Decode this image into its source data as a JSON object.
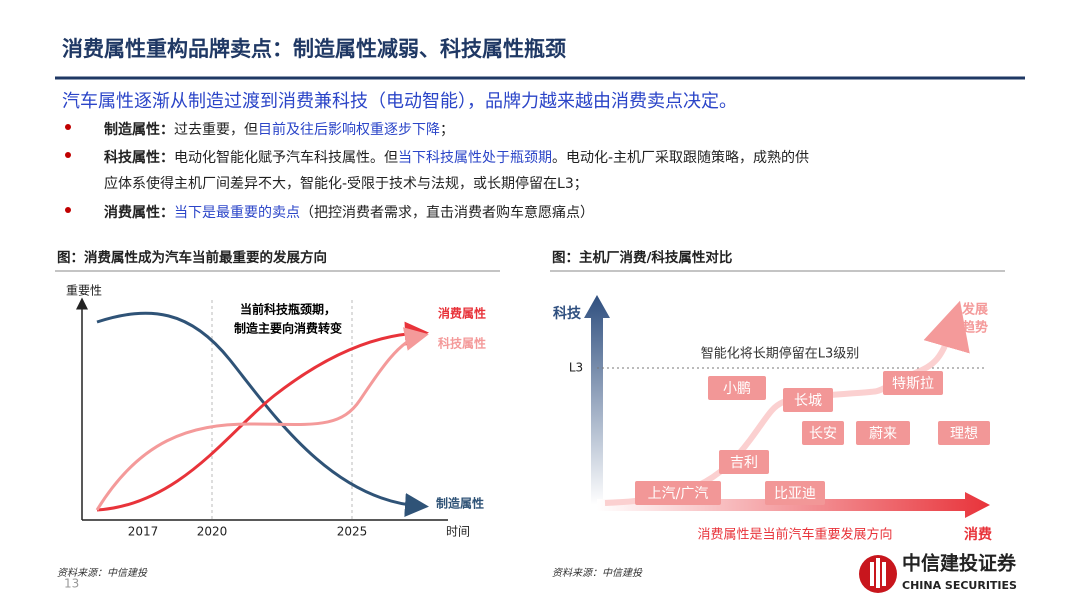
{
  "header": {
    "title": "消费属性重构品牌卖点：制造属性减弱、科技属性瓶颈"
  },
  "summary": "汽车属性逐渐从制造过渡到消费兼科技（电动智能），品牌力越来越由消费卖点决定。",
  "bullets": [
    {
      "label": "制造属性：",
      "parts": [
        {
          "text": "过去重要，但"
        },
        {
          "text": "目前及往后影响权重逐步下降",
          "color": "#2b45c8"
        },
        {
          "text": "；"
        }
      ]
    },
    {
      "label": "科技属性：",
      "parts": [
        {
          "text": "电动化智能化赋予汽车科技属性。但"
        },
        {
          "text": "当下科技属性处于瓶颈期",
          "color": "#2b45c8"
        },
        {
          "text": "。电动化-主机厂采取跟随策略，成熟的供"
        },
        {
          "text": "应体系使得主机厂间差异不大，智能化-受限于技术与法规，或长期停留在L3；"
        }
      ]
    },
    {
      "label": "消费属性：",
      "parts": [
        {
          "text": "当下是最重要的卖点",
          "color": "#2b45c8"
        },
        {
          "text": "（把控消费者需求，直击消费者购车意愿痛点）"
        }
      ]
    }
  ],
  "left_figure": {
    "title": "图：消费属性成为汽车当前最重要的发展方向",
    "y_label": "重要性",
    "x_label": "时间",
    "x_ticks": [
      "2017",
      "2020",
      "2025"
    ],
    "annotation": [
      "当前科技瓶颈期，",
      "制造主要向消费转变"
    ],
    "curves": [
      "消费属性",
      "科技属性",
      "制造属性"
    ],
    "source": "资料来源：中信建投"
  },
  "right_figure": {
    "title": "图：主机厂消费/科技属性对比",
    "y_label": "科技",
    "x_label": "消费",
    "level": "L3",
    "level_note": "智能化将长期停留在L3级别",
    "trend": [
      "发展",
      "趋势"
    ],
    "x_note": "消费属性是当前汽车重要发展方向",
    "brands": [
      "上汽/广汽",
      "比亚迪",
      "吉利",
      "长安",
      "蔚来",
      "理想",
      "长城",
      "小鹏",
      "特斯拉"
    ],
    "source": "资料来源：中信建投"
  },
  "footer": {
    "page": "13",
    "logo_cn": "中信建投证券",
    "logo_en": "CHINA SECURITIES"
  }
}
